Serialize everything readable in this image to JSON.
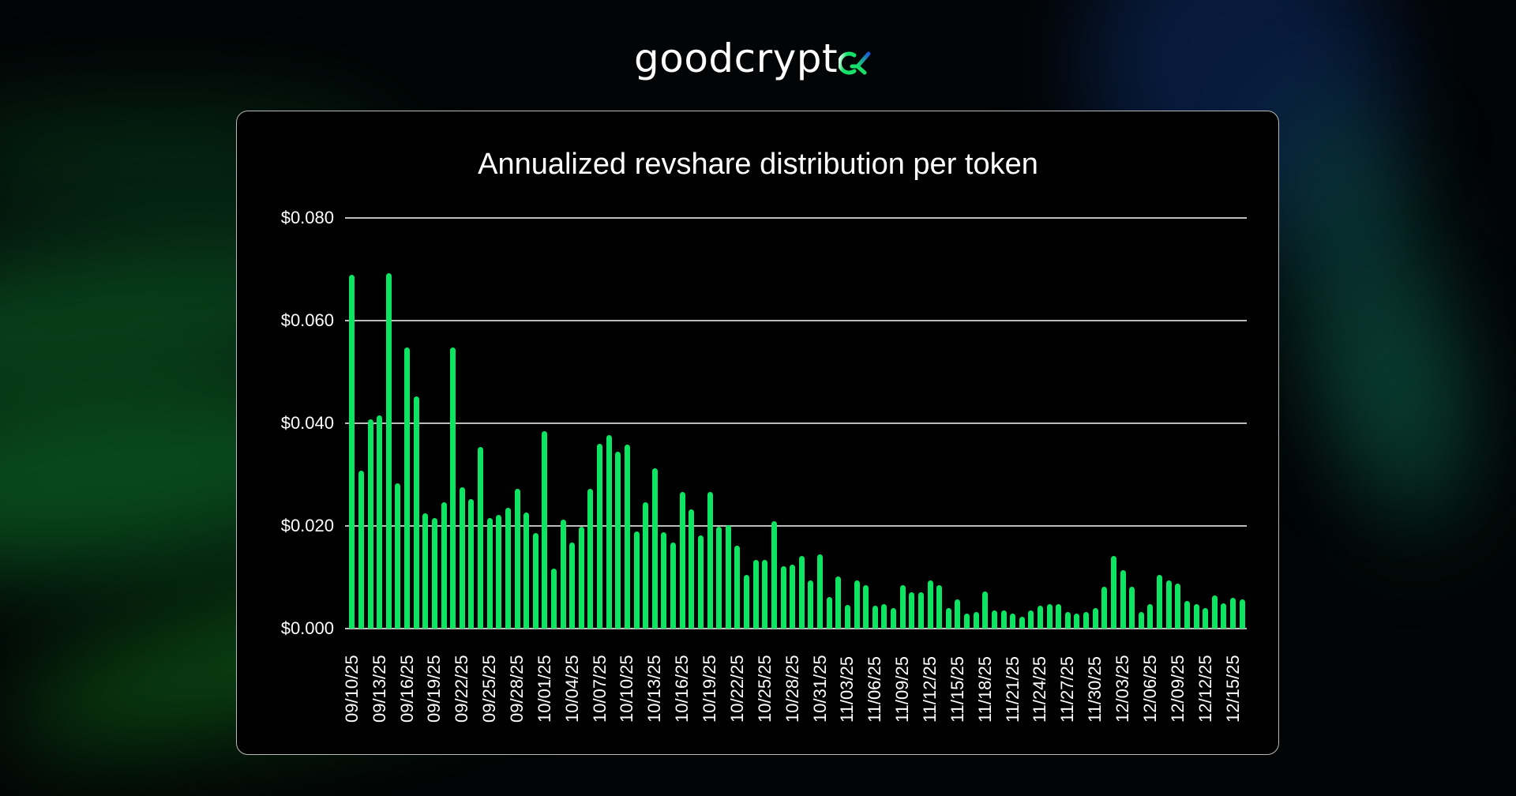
{
  "brand": {
    "name": "goodcrypt",
    "mark": "x-alpha-logo-mark",
    "text_color": "#ffffff",
    "mark_gradient": [
      "#ffffff",
      "#16e06a",
      "#1e5ad6"
    ]
  },
  "colors": {
    "bar": "#0ce462",
    "card_background": "#000000",
    "card_border": "#b9b9b9",
    "gridline": "#bdbdbd",
    "text": "#ffffff",
    "bg_glow_green": "#0b5a22",
    "bg_glow_blue": "#0a2350",
    "bg_glow_teal": "#0a3d3a"
  },
  "chart_data": {
    "type": "bar",
    "title": "Annualized revshare distribution per token",
    "xlabel": "",
    "ylabel": "",
    "ylim": [
      0,
      0.08
    ],
    "yticks": [
      0,
      0.02,
      0.04,
      0.06,
      0.08
    ],
    "ytick_labels": [
      "$0.000",
      "$0.020",
      "$0.040",
      "$0.060",
      "$0.080"
    ],
    "grid": true,
    "legend": null,
    "xtick_labels": [
      "09/10/25",
      "09/13/25",
      "09/16/25",
      "09/19/25",
      "09/22/25",
      "09/25/25",
      "09/28/25",
      "10/01/25",
      "10/04/25",
      "10/07/25",
      "10/10/25",
      "10/13/25",
      "10/16/25",
      "10/19/25",
      "10/22/25",
      "10/25/25",
      "10/28/25",
      "10/31/25",
      "11/03/25",
      "11/06/25",
      "11/09/25",
      "11/12/25",
      "11/15/25",
      "11/18/25",
      "11/21/25",
      "11/24/25",
      "11/27/25",
      "11/30/25",
      "12/03/25",
      "12/06/25",
      "12/09/25",
      "12/12/25",
      "12/15/25"
    ],
    "xtick_every": 3,
    "categories": [
      "09/10/25",
      "09/11/25",
      "09/12/25",
      "09/13/25",
      "09/14/25",
      "09/15/25",
      "09/16/25",
      "09/17/25",
      "09/18/25",
      "09/19/25",
      "09/20/25",
      "09/21/25",
      "09/22/25",
      "09/23/25",
      "09/24/25",
      "09/25/25",
      "09/26/25",
      "09/27/25",
      "09/28/25",
      "09/29/25",
      "09/30/25",
      "10/01/25",
      "10/02/25",
      "10/03/25",
      "10/04/25",
      "10/05/25",
      "10/06/25",
      "10/07/25",
      "10/08/25",
      "10/09/25",
      "10/10/25",
      "10/11/25",
      "10/12/25",
      "10/13/25",
      "10/14/25",
      "10/15/25",
      "10/16/25",
      "10/17/25",
      "10/18/25",
      "10/19/25",
      "10/20/25",
      "10/21/25",
      "10/22/25",
      "10/23/25",
      "10/24/25",
      "10/25/25",
      "10/26/25",
      "10/27/25",
      "10/28/25",
      "10/29/25",
      "10/30/25",
      "10/31/25",
      "11/01/25",
      "11/02/25",
      "11/03/25",
      "11/04/25",
      "11/05/25",
      "11/06/25",
      "11/07/25",
      "11/08/25",
      "11/09/25",
      "11/10/25",
      "11/11/25",
      "11/12/25",
      "11/13/25",
      "11/14/25",
      "11/15/25",
      "11/16/25",
      "11/17/25",
      "11/18/25",
      "11/19/25",
      "11/20/25",
      "11/21/25",
      "11/22/25",
      "11/23/25",
      "11/24/25",
      "11/25/25",
      "11/26/25",
      "11/27/25",
      "11/28/25",
      "11/29/25",
      "11/30/25",
      "12/01/25",
      "12/02/25",
      "12/03/25",
      "12/04/25",
      "12/05/25",
      "12/06/25",
      "12/07/25",
      "12/08/25",
      "12/09/25",
      "12/10/25",
      "12/11/25",
      "12/12/25",
      "12/13/25",
      "12/14/25",
      "12/15/25",
      "12/16/25"
    ],
    "values": [
      0.0689,
      0.0307,
      0.0408,
      0.0415,
      0.0693,
      0.0283,
      0.0547,
      0.0452,
      0.0225,
      0.0215,
      0.0246,
      0.0547,
      0.0276,
      0.0253,
      0.0354,
      0.0215,
      0.0222,
      0.0236,
      0.0273,
      0.0226,
      0.0186,
      0.0385,
      0.0117,
      0.0212,
      0.0167,
      0.0199,
      0.0273,
      0.036,
      0.0377,
      0.0344,
      0.0358,
      0.0189,
      0.0246,
      0.0313,
      0.0188,
      0.0167,
      0.0266,
      0.0232,
      0.0182,
      0.0266,
      0.0198,
      0.0202,
      0.0161,
      0.0105,
      0.0134,
      0.0134,
      0.0209,
      0.0122,
      0.0125,
      0.0142,
      0.0094,
      0.0145,
      0.0061,
      0.0101,
      0.0046,
      0.0094,
      0.0084,
      0.0044,
      0.0047,
      0.004,
      0.0084,
      0.0071,
      0.0071,
      0.0094,
      0.0084,
      0.004,
      0.0057,
      0.003,
      0.0033,
      0.0073,
      0.0036,
      0.0036,
      0.003,
      0.0023,
      0.0036,
      0.0044,
      0.0047,
      0.0047,
      0.0033,
      0.003,
      0.0033,
      0.004,
      0.0081,
      0.0142,
      0.0114,
      0.0081,
      0.0033,
      0.0047,
      0.0104,
      0.0094,
      0.0087,
      0.0054,
      0.0047,
      0.004,
      0.0064,
      0.005,
      0.006,
      0.0057
    ]
  }
}
